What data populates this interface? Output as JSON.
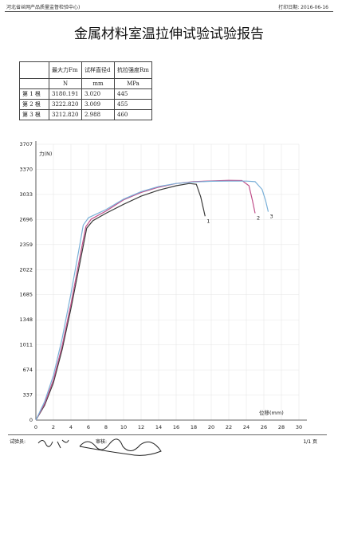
{
  "header": {
    "org": "河北省丝网产品质量监督检验中心)",
    "print_date": "打印日期: 2016-06-16"
  },
  "title": "金属材料室温拉伸试验试验报告",
  "table": {
    "header": [
      "最大力Fm",
      "试样直径d",
      "抗拉强度Rm"
    ],
    "units": [
      "N",
      "mm",
      "MPa"
    ],
    "rows": [
      [
        "第 1 根",
        "3180.191",
        "3.020",
        "445"
      ],
      [
        "第 2 根",
        "3222.820",
        "3.009",
        "455"
      ],
      [
        "第 3 根",
        "3212.820",
        "2.988",
        "460"
      ]
    ]
  },
  "chart_data": {
    "type": "line",
    "y_label": "力(N)",
    "x_label": "位移(mm)",
    "xlim": [
      0,
      30
    ],
    "xticks": [
      0,
      2,
      4,
      6,
      8,
      10,
      12,
      14,
      16,
      18,
      20,
      22,
      24,
      26,
      28,
      30
    ],
    "ylim": [
      0,
      3707
    ],
    "yticks": [
      0,
      337,
      674,
      1011,
      1348,
      1685,
      2022,
      2359,
      2696,
      3033,
      3370,
      3707
    ],
    "grid": true,
    "series": [
      {
        "name": "1",
        "color": "#3a3a3a",
        "x": [
          0,
          1,
          2,
          3,
          4,
          5,
          5.8,
          6.5,
          8,
          10,
          12,
          14,
          16,
          17.5,
          18.3,
          18.8,
          19.3
        ],
        "values": [
          0,
          200,
          500,
          950,
          1500,
          2100,
          2580,
          2680,
          2780,
          2900,
          3010,
          3090,
          3150,
          3180,
          3170,
          3000,
          2740
        ]
      },
      {
        "name": "2",
        "color": "#c0508a",
        "x": [
          0,
          1,
          2,
          3,
          4,
          5,
          5.7,
          6.3,
          8,
          10,
          12,
          14,
          16,
          18,
          20,
          22,
          23.5,
          24.3,
          24.7,
          25
        ],
        "values": [
          0,
          220,
          540,
          1000,
          1560,
          2180,
          2600,
          2700,
          2810,
          2960,
          3060,
          3130,
          3180,
          3205,
          3215,
          3222,
          3220,
          3150,
          2950,
          2780
        ]
      },
      {
        "name": "3",
        "color": "#7ab0d8",
        "x": [
          0,
          1,
          2,
          3,
          4,
          5,
          5.4,
          6,
          8,
          10,
          12,
          14,
          16,
          18,
          20,
          22,
          24,
          25,
          25.8,
          26.2,
          26.5
        ],
        "values": [
          0,
          250,
          600,
          1100,
          1700,
          2350,
          2620,
          2720,
          2830,
          2970,
          3070,
          3140,
          3180,
          3200,
          3210,
          3212,
          3212,
          3205,
          3100,
          2950,
          2800
        ]
      }
    ]
  },
  "footer": {
    "tester": "试验员:",
    "reviewer": "审核:",
    "page": "1/1 页"
  }
}
